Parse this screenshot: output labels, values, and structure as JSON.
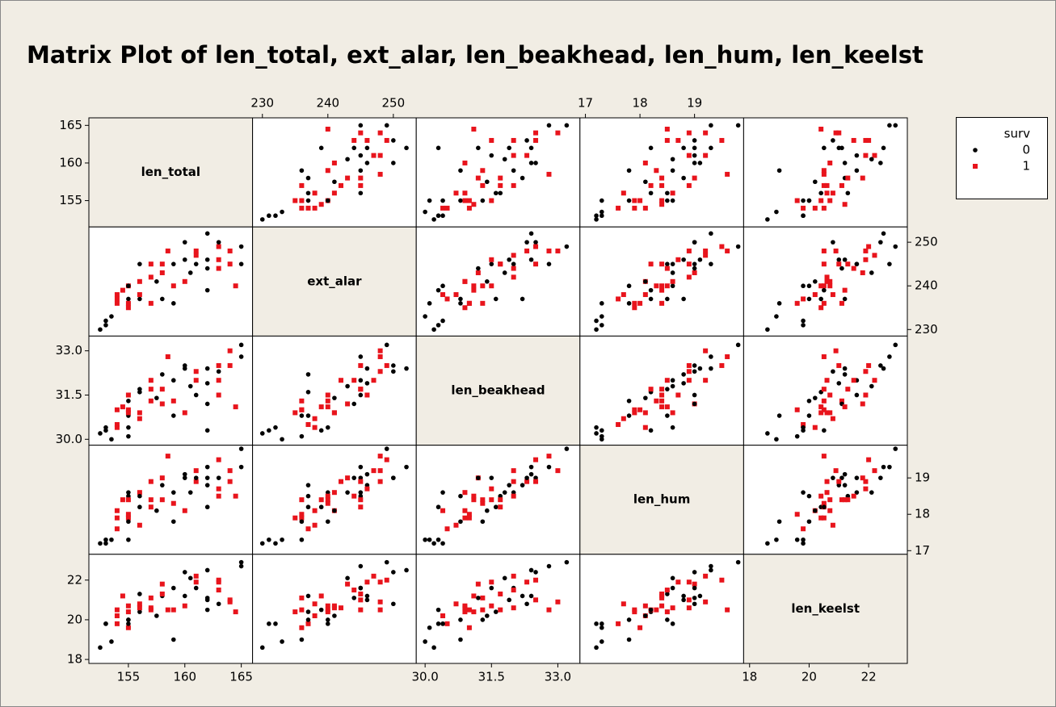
{
  "chart_data": {
    "type": "scatter_matrix",
    "title": "Matrix Plot of len_total, ext_alar, len_beakhead, len_hum, len_keelst",
    "legend_title": "surv",
    "groups": [
      {
        "name": "0",
        "color": "#000000",
        "marker": "circle"
      },
      {
        "name": "1",
        "color": "#e8141c",
        "marker": "square"
      }
    ],
    "surv": [
      0,
      0,
      0,
      1,
      1,
      1,
      0,
      0,
      1,
      1,
      1,
      0,
      0,
      0,
      1,
      0,
      1,
      1,
      1,
      0,
      1,
      1,
      0,
      1,
      0,
      0,
      0,
      1,
      1,
      1,
      0,
      0,
      0,
      0,
      0,
      1,
      1,
      0,
      1,
      1,
      1,
      0,
      0,
      0,
      1,
      0,
      0,
      1,
      1,
      1
    ],
    "variables": [
      {
        "name": "len_total",
        "lim": [
          151.5,
          166
        ],
        "ticks": [
          155,
          160,
          165
        ],
        "values": [
          152.5,
          153,
          153,
          154,
          154,
          154,
          155,
          155,
          155,
          155,
          155,
          155,
          155,
          156,
          156,
          156,
          157,
          157,
          157,
          158,
          158,
          158,
          159,
          159,
          159,
          160,
          160,
          160,
          161,
          161,
          161,
          162,
          162,
          162,
          162,
          163,
          163,
          163,
          163,
          164,
          164,
          165,
          165,
          153.5,
          156,
          157.5,
          160.5,
          158.5,
          154.5,
          164.5
        ]
      },
      {
        "name": "ext_alar",
        "lim": [
          228.5,
          253.5
        ],
        "ticks": [
          230,
          240,
          250
        ],
        "values": [
          230,
          231,
          232,
          237,
          238,
          236,
          236,
          237,
          235,
          240,
          236,
          240,
          240,
          237,
          241,
          245,
          245,
          242,
          236,
          237,
          245,
          243,
          236,
          240,
          245,
          250,
          246,
          241,
          247,
          248,
          245,
          252,
          239,
          246,
          244,
          249,
          246,
          250,
          244,
          248,
          245,
          249,
          245,
          233,
          238,
          241,
          243,
          248,
          239,
          240
        ]
      },
      {
        "name": "len_beakhead",
        "lim": [
          29.8,
          33.5
        ],
        "ticks": [
          {
            "value": 30,
            "label": "30.0"
          },
          31.5,
          {
            "value": 33,
            "label": "33.0"
          }
        ],
        "values": [
          30.2,
          30.3,
          30.4,
          30.5,
          30.4,
          31.0,
          30.1,
          30.8,
          30.9,
          31.5,
          31.0,
          30.4,
          31.3,
          31.6,
          30.9,
          31.7,
          31.7,
          32.0,
          31.3,
          32.2,
          31.7,
          31.2,
          30.8,
          31.3,
          32.0,
          32.5,
          32.4,
          30.9,
          32.0,
          32.3,
          31.5,
          32.4,
          30.3,
          31.9,
          31.2,
          32.5,
          31.5,
          32.3,
          32.0,
          33.0,
          32.5,
          33.2,
          32.8,
          30.0,
          30.7,
          31.4,
          31.8,
          32.8,
          31.1,
          31.1
        ]
      },
      {
        "name": "len_hum",
        "lim": [
          16.9,
          19.9
        ],
        "ticks": [
          17,
          18,
          19
        ],
        "values": [
          17.2,
          17.3,
          17.2,
          17.6,
          18.1,
          17.9,
          17.3,
          18.5,
          17.9,
          18.4,
          18.0,
          18.6,
          17.8,
          18.2,
          18.6,
          18.5,
          18.2,
          18.9,
          18.4,
          18.8,
          18.4,
          19.0,
          17.8,
          18.3,
          18.6,
          19.0,
          19.1,
          18.1,
          19.2,
          18.9,
          19.0,
          19.3,
          18.2,
          18.8,
          19.0,
          19.5,
          18.7,
          19.0,
          18.5,
          19.2,
          18.9,
          19.8,
          19.3,
          17.3,
          17.7,
          18.1,
          18.6,
          19.6,
          18.4,
          18.5
        ]
      },
      {
        "name": "len_keelst",
        "lim": [
          17.8,
          23.3
        ],
        "ticks": [
          18,
          20,
          22
        ],
        "values": [
          18.6,
          19.8,
          19.8,
          19.8,
          20.2,
          20.5,
          19.6,
          20.0,
          20.4,
          20.7,
          19.6,
          19.8,
          20.0,
          20.4,
          20.6,
          21.3,
          20.5,
          20.6,
          21.1,
          21.2,
          21.3,
          21.8,
          19.0,
          20.5,
          21.6,
          22.4,
          21.2,
          20.7,
          22.2,
          21.9,
          21.6,
          22.5,
          20.5,
          21.0,
          21.1,
          22.0,
          21.9,
          20.8,
          21.5,
          20.9,
          21.0,
          22.9,
          22.7,
          18.9,
          20.8,
          20.2,
          22.1,
          20.5,
          21.2,
          20.4
        ]
      }
    ]
  }
}
